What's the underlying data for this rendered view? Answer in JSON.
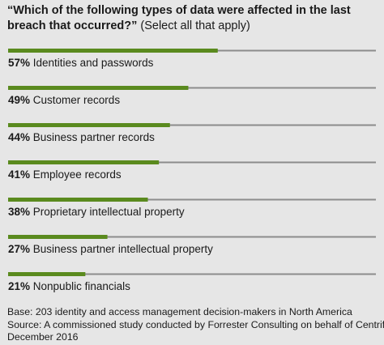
{
  "title": {
    "question": "“Which of the following types of data were affected in the last breach that occurred?”",
    "note": "(Select all that apply)"
  },
  "colors": {
    "background": "#e6e6e6",
    "bar": "#5a8a1e",
    "track": "#8c8c8c",
    "text": "#1a1a1a"
  },
  "chart_data": {
    "type": "bar",
    "orientation": "horizontal",
    "value_unit": "%",
    "xlim": [
      0,
      100
    ],
    "grid": false,
    "categories": [
      "Identities and passwords",
      "Customer records",
      "Business partner records",
      "Employee records",
      "Proprietary intellectual property",
      "Business partner intellectual property",
      "Nonpublic financials"
    ],
    "values": [
      57,
      49,
      44,
      41,
      38,
      27,
      21
    ],
    "value_labels": [
      "57%",
      "49%",
      "44%",
      "41%",
      "38%",
      "27%",
      "21%"
    ]
  },
  "footnote": {
    "base": "Base: 203 identity and access management decision-makers in North America",
    "source_line1": "Source: A commissioned study conducted by Forrester Consulting on behalf of Centrify,",
    "source_line2": "December 2016"
  }
}
